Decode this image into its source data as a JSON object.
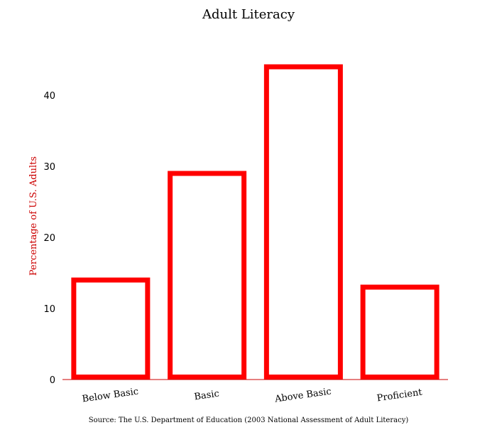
{
  "chart_data": {
    "type": "bar",
    "title": "Adult Literacy",
    "xlabel": "",
    "ylabel": "Percentage of U.S. Adults",
    "categories": [
      "Below Basic",
      "Basic",
      "Above Basic",
      "Proficient"
    ],
    "values": [
      14,
      29,
      44,
      13
    ],
    "ylim": [
      0,
      47
    ],
    "yticks": [
      0,
      10,
      20,
      30,
      40
    ],
    "grid": false,
    "legend": "none",
    "source": "Source: The U.S. Department of Education (2003 National Assessment of Adult Literacy)"
  },
  "colors": {
    "bar_edge": "#ff0000",
    "bar_fill": "#ffffff",
    "baseline": "#cc0000",
    "ylabel": "#cc0000"
  }
}
